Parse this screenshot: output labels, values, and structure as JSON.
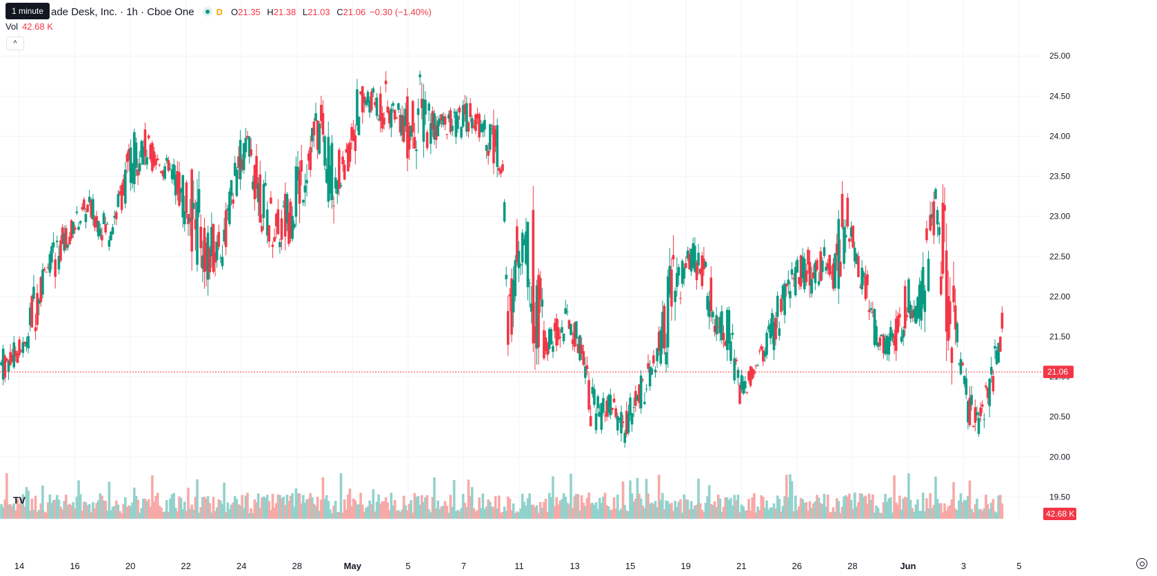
{
  "legend": {
    "tooltip": "1 minute",
    "title": "ade Desk, Inc. · 1h · Cboe One",
    "d_chip": "D",
    "open_label": "O",
    "open": "21.35",
    "high_label": "H",
    "high": "21.38",
    "low_label": "L",
    "low": "21.03",
    "close_label": "C",
    "close": "21.06",
    "change": "−0.30 (−1.40%)",
    "volume_label": "Vol",
    "volume": "42.68 K"
  },
  "colors": {
    "up": "#089981",
    "down": "#f23645",
    "vol_up": "#92d2cc",
    "vol_down": "#f7a9a7",
    "grid": "#f0f3fa"
  },
  "icons": [
    "collapse-chevron-up-icon",
    "tradingview-logo-icon",
    "settings-gear-icon"
  ],
  "chart_data": {
    "type": "candlestick",
    "ylim": [
      19.4,
      25.2
    ],
    "y_ticks": [
      "25.00",
      "24.50",
      "24.00",
      "23.50",
      "23.00",
      "22.50",
      "22.00",
      "21.50",
      "21.00",
      "20.50",
      "20.00",
      "19.50"
    ],
    "x_ticks": [
      "14",
      "16",
      "20",
      "22",
      "24",
      "28",
      "May",
      "5",
      "7",
      "11",
      "13",
      "15",
      "19",
      "21",
      "26",
      "28",
      "Jun",
      "3",
      "5"
    ],
    "last_price": "21.06",
    "last_volume": "42.68 K",
    "series": [
      {
        "type": "candle",
        "segments": [
          [
            0,
            20.9,
            21.4
          ],
          [
            13,
            21.25,
            21.5
          ],
          [
            20,
            21.6,
            22.5
          ],
          [
            25,
            22.3,
            22.4
          ],
          [
            30,
            22.2,
            22.8
          ],
          [
            40,
            22.75,
            23.0
          ],
          [
            48,
            22.9,
            23.3
          ],
          [
            60,
            22.6,
            23.0
          ],
          [
            66,
            23.0,
            23.4
          ],
          [
            72,
            23.3,
            24.0
          ],
          [
            78,
            23.6,
            24.2
          ],
          [
            87,
            23.55,
            23.8
          ],
          [
            96,
            23.3,
            23.7
          ],
          [
            108,
            22.3,
            23.6
          ],
          [
            116,
            22.1,
            22.9
          ],
          [
            124,
            22.4,
            23.0
          ],
          [
            128,
            23.0,
            23.5
          ],
          [
            133,
            23.4,
            24.0
          ],
          [
            137,
            23.6,
            24.1
          ],
          [
            146,
            22.7,
            23.5
          ],
          [
            154,
            22.5,
            23.1
          ],
          [
            162,
            22.7,
            23.6
          ],
          [
            167,
            23.0,
            24.0
          ],
          [
            173,
            23.6,
            24.3
          ],
          [
            178,
            23.8,
            24.4
          ],
          [
            183,
            23.0,
            24.1
          ],
          [
            191,
            23.4,
            23.7
          ],
          [
            197,
            23.8,
            24.6
          ],
          [
            203,
            24.2,
            24.7
          ],
          [
            207,
            24.3,
            24.6
          ],
          [
            214,
            23.9,
            24.7
          ],
          [
            220,
            24.2,
            24.4
          ],
          [
            226,
            23.7,
            24.5
          ],
          [
            233,
            23.8,
            24.8
          ],
          [
            241,
            23.9,
            24.4
          ],
          [
            248,
            24.0,
            24.3
          ],
          [
            256,
            23.9,
            24.4
          ],
          [
            262,
            24.1,
            24.5
          ],
          [
            268,
            23.9,
            24.2
          ],
          [
            274,
            23.6,
            24.4
          ],
          [
            279,
            23.5,
            23.8
          ],
          [
            282,
            21.0,
            22.0
          ],
          [
            286,
            22.0,
            22.9
          ],
          [
            291,
            22.5,
            23.0
          ],
          [
            296,
            21.4,
            23.1
          ],
          [
            303,
            21.2,
            21.6
          ],
          [
            311,
            21.3,
            21.8
          ],
          [
            316,
            21.5,
            21.9
          ],
          [
            324,
            21.1,
            21.5
          ],
          [
            329,
            20.2,
            21.0
          ],
          [
            333,
            20.3,
            20.7
          ],
          [
            339,
            20.5,
            20.8
          ],
          [
            346,
            20.1,
            20.6
          ],
          [
            353,
            20.4,
            20.9
          ],
          [
            359,
            20.7,
            21.2
          ],
          [
            364,
            21.0,
            21.3
          ],
          [
            373,
            21.2,
            22.6
          ],
          [
            379,
            22.1,
            22.5
          ],
          [
            385,
            22.3,
            22.7
          ],
          [
            391,
            21.9,
            22.6
          ],
          [
            398,
            21.5,
            22.0
          ],
          [
            405,
            21.3,
            21.9
          ],
          [
            411,
            20.6,
            21.0
          ],
          [
            416,
            20.8,
            21.1
          ],
          [
            421,
            21.1,
            21.3
          ],
          [
            426,
            21.2,
            21.6
          ],
          [
            433,
            21.4,
            22.1
          ],
          [
            439,
            21.9,
            22.4
          ],
          [
            445,
            22.1,
            22.6
          ],
          [
            452,
            21.9,
            22.6
          ],
          [
            458,
            22.3,
            22.7
          ],
          [
            463,
            22.0,
            22.5
          ],
          [
            468,
            22.1,
            23.4
          ],
          [
            472,
            22.6,
            23.2
          ],
          [
            476,
            22.3,
            22.6
          ],
          [
            480,
            21.9,
            22.4
          ],
          [
            484,
            21.4,
            22.2
          ],
          [
            488,
            21.3,
            21.6
          ],
          [
            494,
            21.2,
            21.6
          ],
          [
            500,
            21.3,
            21.9
          ],
          [
            505,
            21.7,
            22.3
          ],
          [
            510,
            21.6,
            22.0
          ],
          [
            515,
            21.8,
            23.0
          ],
          [
            520,
            23.0,
            23.4
          ],
          [
            524,
            21.7,
            23.3
          ],
          [
            529,
            21.1,
            22.6
          ],
          [
            533,
            21.1,
            21.4
          ],
          [
            538,
            20.4,
            21.0
          ],
          [
            544,
            20.2,
            20.6
          ],
          [
            548,
            20.4,
            21.1
          ],
          [
            554,
            21.0,
            21.5
          ],
          [
            558,
            21.5,
            21.9
          ]
        ]
      }
    ]
  }
}
